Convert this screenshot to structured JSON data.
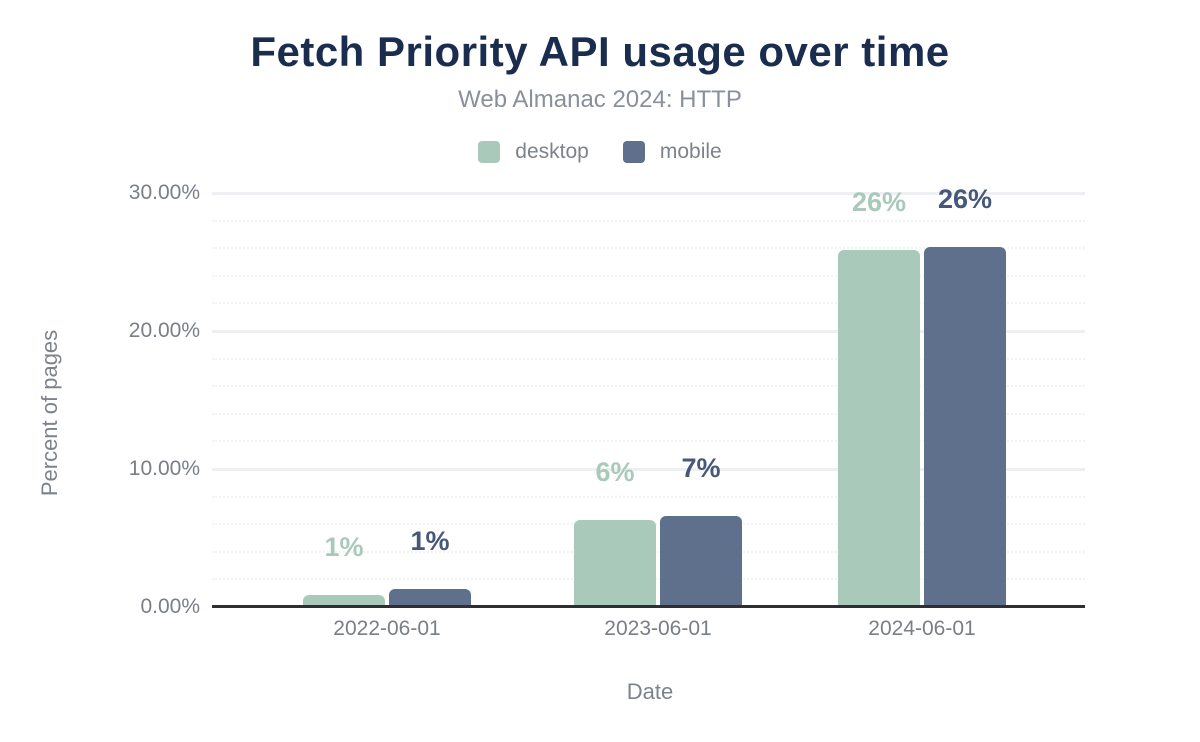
{
  "header": {
    "title": "Fetch Priority API usage over time",
    "subtitle": "Web Almanac 2024: HTTP"
  },
  "legend": {
    "items": [
      {
        "label": "desktop",
        "color": "#a9cabb"
      },
      {
        "label": "mobile",
        "color": "#5f708c"
      }
    ]
  },
  "chart_data": {
    "type": "bar",
    "title": "Fetch Priority API usage over time",
    "subtitle": "Web Almanac 2024: HTTP",
    "categories": [
      "2022-06-01",
      "2023-06-01",
      "2024-06-01"
    ],
    "series": [
      {
        "name": "desktop",
        "color": "#a9cabb",
        "label_color": "#a9cabb",
        "values": [
          0.9,
          6.3,
          25.9
        ],
        "data_labels": [
          "1%",
          "6%",
          "26%"
        ]
      },
      {
        "name": "mobile",
        "color": "#5f708c",
        "label_color": "#46587a",
        "values": [
          1.3,
          6.6,
          26.1
        ],
        "data_labels": [
          "1%",
          "7%",
          "26%"
        ]
      }
    ],
    "xlabel": "Date",
    "ylabel": "Percent of pages",
    "ylim": [
      0,
      30
    ],
    "yticks": [
      {
        "value": 0,
        "label": "0.00%"
      },
      {
        "value": 10,
        "label": "10.00%"
      },
      {
        "value": 20,
        "label": "20.00%"
      },
      {
        "value": 30,
        "label": "30.00%"
      }
    ],
    "grid": {
      "major_step": 10,
      "minor_step": 2,
      "minor_style": "dotted"
    },
    "legend_position": "top"
  },
  "colors": {
    "title": "#1b2d4f",
    "subtitle": "#8a909a",
    "axis_text": "#797e87",
    "axis_line": "#2e2f33",
    "grid_major": "#edeff2",
    "grid_minor": "#f2f3f6",
    "background": "#ffffff"
  }
}
